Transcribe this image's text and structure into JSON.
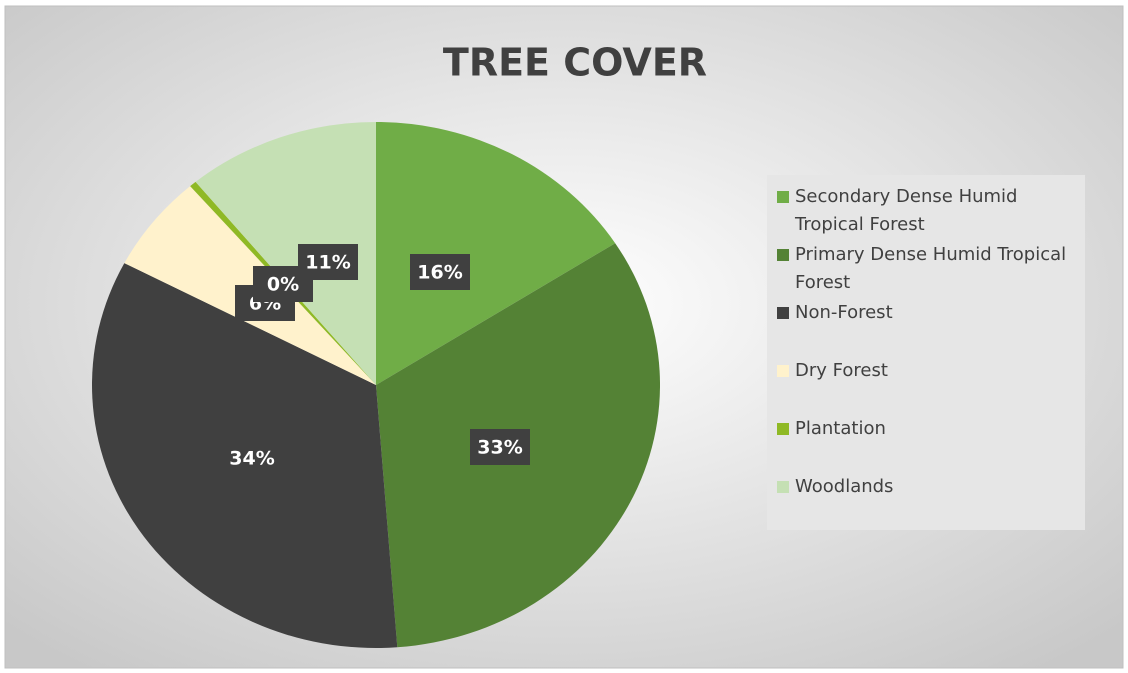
{
  "chart_data": {
    "type": "pie",
    "title": "TREE COVER",
    "categories": [
      "Secondary Dense Humid Tropical Forest",
      "Primary Dense Humid Tropical Forest",
      "Non-Forest",
      "Dry Forest",
      "Plantation",
      "Woodlands"
    ],
    "values": [
      16,
      33,
      34,
      6,
      0.4,
      11
    ],
    "value_labels": [
      "16%",
      "33%",
      "34%",
      "6%",
      "0%",
      "11%"
    ],
    "colors": [
      "#70ad47",
      "#548235",
      "#404040",
      "#fff2cc",
      "#8fb925",
      "#c5e0b4"
    ],
    "legend": "right"
  }
}
